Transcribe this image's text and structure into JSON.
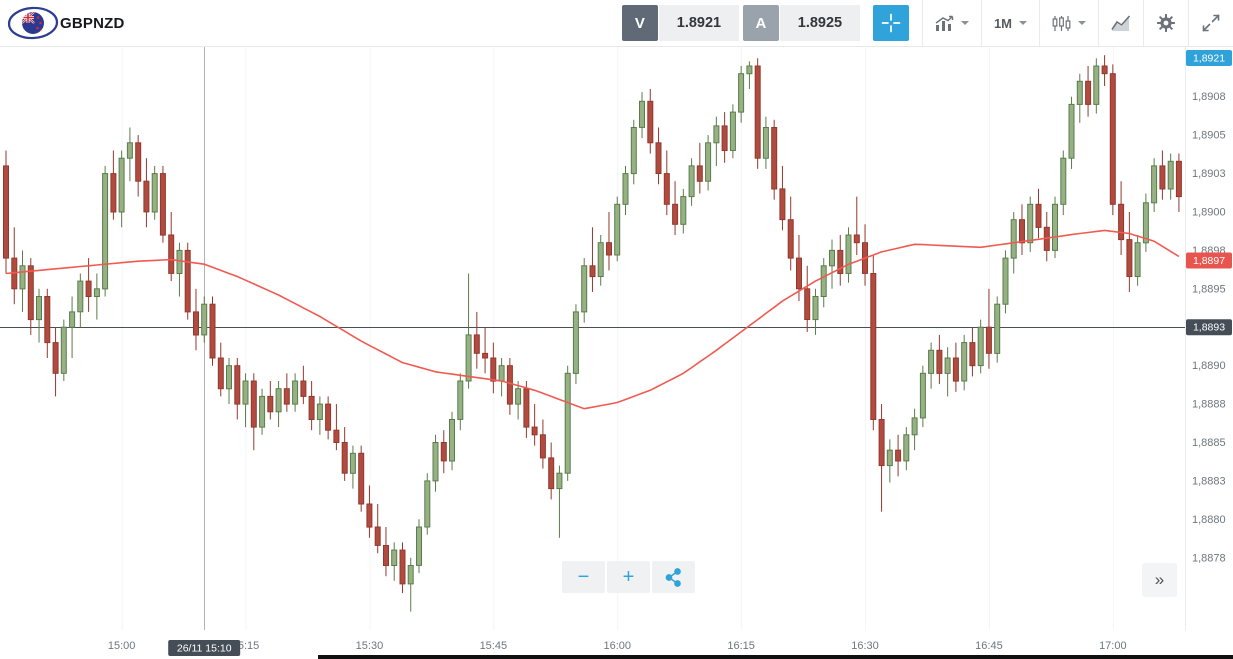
{
  "toolbar": {
    "symbol": "GBPNZD",
    "sell_label": "V",
    "sell_price": "1.8921",
    "buy_label": "A",
    "buy_price": "1.8925",
    "timeframe": "1M"
  },
  "controls": {
    "zoom_out": "−",
    "zoom_in": "+",
    "expand": "»"
  },
  "icons": {
    "crosshair": "crosshair-icon",
    "chart_type": "chart-type-icon",
    "candle_style": "candles-icon",
    "indicators": "indicators-icon",
    "settings": "gear-icon",
    "fullscreen": "fullscreen-toggle-icon",
    "share": "share-icon",
    "dropdown": "chevron-down-icon"
  },
  "chart_data": {
    "type": "candlestick",
    "title": "GBPNZD 1-minute chart",
    "symbol": "GBPNZD",
    "interval": "1m",
    "colors": {
      "up": "#96b285",
      "up_border": "#5a7c4a",
      "down": "#b24b3f",
      "down_border": "#93382e",
      "ma": "#f05a50",
      "blue_badge": "#30a2da",
      "red_badge": "#e8554e",
      "dark_badge": "#454e57",
      "axis_text": "#6f767d",
      "open_line": "#4a4f55",
      "crosshair_line": "#b0b4b8",
      "grid": "#f4f5f6"
    },
    "price_axis": {
      "ymax": 1.89108,
      "ymin": 1.88728,
      "ticks": [
        {
          "label": "1,8908",
          "price": 1.89075
        },
        {
          "label": "1,8905",
          "price": 1.8905
        },
        {
          "label": "1,8903",
          "price": 1.89025
        },
        {
          "label": "1,8900",
          "price": 1.89
        },
        {
          "label": "1,8898",
          "price": 1.88975
        },
        {
          "label": "1,8895",
          "price": 1.8895
        },
        {
          "label": "1,8893",
          "price": 1.88925
        },
        {
          "label": "1,8890",
          "price": 1.889
        },
        {
          "label": "1,8888",
          "price": 1.88875
        },
        {
          "label": "1,8885",
          "price": 1.8885
        },
        {
          "label": "1,8883",
          "price": 1.88825
        },
        {
          "label": "1,8880",
          "price": 1.888
        },
        {
          "label": "1,8878",
          "price": 1.88775
        }
      ]
    },
    "time_axis": {
      "ticks": [
        {
          "label": "15:00",
          "index": 14
        },
        {
          "label": "15:15",
          "index": 29
        },
        {
          "label": "15:30",
          "index": 44
        },
        {
          "label": "15:45",
          "index": 59
        },
        {
          "label": "16:00",
          "index": 74
        },
        {
          "label": "16:15",
          "index": 89
        },
        {
          "label": "16:30",
          "index": 104
        },
        {
          "label": "16:45",
          "index": 119
        },
        {
          "label": "17:00",
          "index": 134
        }
      ]
    },
    "open_line": {
      "price": 1.88925,
      "label": "1,8893"
    },
    "last_price_badge": {
      "label": "1,8921",
      "clamped_top": true
    },
    "crosshair": {
      "index": 24,
      "label": "26/11 15:10"
    },
    "ma_line": {
      "label": "1,8897",
      "last": 1.88971,
      "color": "#f05a50",
      "points": [
        [
          0,
          1.8896
        ],
        [
          8,
          1.88964
        ],
        [
          16,
          1.88968
        ],
        [
          20,
          1.88969
        ],
        [
          24,
          1.88966
        ],
        [
          28,
          1.88958
        ],
        [
          33,
          1.88946
        ],
        [
          38,
          1.88932
        ],
        [
          43,
          1.88916
        ],
        [
          48,
          1.88902
        ],
        [
          52,
          1.88896
        ],
        [
          56,
          1.88893
        ],
        [
          60,
          1.8889
        ],
        [
          64,
          1.88884
        ],
        [
          67,
          1.88878
        ],
        [
          70,
          1.88872
        ],
        [
          74,
          1.88876
        ],
        [
          78,
          1.88884
        ],
        [
          82,
          1.88895
        ],
        [
          86,
          1.8891
        ],
        [
          90,
          1.88926
        ],
        [
          94,
          1.88942
        ],
        [
          98,
          1.88955
        ],
        [
          102,
          1.88966
        ],
        [
          106,
          1.88974
        ],
        [
          110,
          1.88979
        ],
        [
          114,
          1.88978
        ],
        [
          118,
          1.88977
        ],
        [
          122,
          1.8898
        ],
        [
          126,
          1.88983
        ],
        [
          130,
          1.88986
        ],
        [
          133,
          1.88988
        ],
        [
          136,
          1.88986
        ],
        [
          139,
          1.88981
        ],
        [
          142,
          1.88971
        ]
      ]
    },
    "candles": [
      [
        "14:46",
        1.8903,
        1.8904,
        1.8896,
        1.8897
      ],
      [
        "14:47",
        1.8897,
        1.8899,
        1.8894,
        1.8895
      ],
      [
        "14:48",
        1.8895,
        1.88975,
        1.88935,
        1.88965
      ],
      [
        "14:49",
        1.88965,
        1.8897,
        1.8892,
        1.8893
      ],
      [
        "14:50",
        1.8893,
        1.8895,
        1.88915,
        1.88945
      ],
      [
        "14:51",
        1.88945,
        1.8895,
        1.88905,
        1.88915
      ],
      [
        "14:52",
        1.88915,
        1.88925,
        1.8888,
        1.88895
      ],
      [
        "14:53",
        1.88895,
        1.8893,
        1.8889,
        1.88925
      ],
      [
        "14:54",
        1.88925,
        1.88945,
        1.88905,
        1.88935
      ],
      [
        "14:55",
        1.88935,
        1.8896,
        1.88925,
        1.88955
      ],
      [
        "14:56",
        1.88955,
        1.8897,
        1.88935,
        1.88945
      ],
      [
        "14:57",
        1.88945,
        1.8896,
        1.8893,
        1.8895
      ],
      [
        "14:58",
        1.8895,
        1.8903,
        1.88945,
        1.89025
      ],
      [
        "14:59",
        1.89025,
        1.8904,
        1.88995,
        1.89
      ],
      [
        "15:00",
        1.89,
        1.8904,
        1.8899,
        1.89035
      ],
      [
        "15:01",
        1.89035,
        1.89055,
        1.8902,
        1.89045
      ],
      [
        "15:02",
        1.89045,
        1.8905,
        1.8901,
        1.8902
      ],
      [
        "15:03",
        1.8902,
        1.89035,
        1.8899,
        1.89
      ],
      [
        "15:04",
        1.89,
        1.8903,
        1.88995,
        1.89025
      ],
      [
        "15:05",
        1.89025,
        1.8903,
        1.8898,
        1.88985
      ],
      [
        "15:06",
        1.88985,
        1.89,
        1.88955,
        1.8896
      ],
      [
        "15:07",
        1.8896,
        1.8898,
        1.88945,
        1.88975
      ],
      [
        "15:08",
        1.88975,
        1.8898,
        1.8893,
        1.88935
      ],
      [
        "15:09",
        1.88935,
        1.8895,
        1.8891,
        1.8892
      ],
      [
        "15:10",
        1.8892,
        1.88945,
        1.88915,
        1.8894
      ],
      [
        "15:11",
        1.8894,
        1.88945,
        1.889,
        1.88905
      ],
      [
        "15:12",
        1.88905,
        1.88915,
        1.8888,
        1.88885
      ],
      [
        "15:13",
        1.88885,
        1.88905,
        1.88875,
        1.889
      ],
      [
        "15:14",
        1.889,
        1.88905,
        1.88865,
        1.88875
      ],
      [
        "15:15",
        1.88875,
        1.88895,
        1.8886,
        1.8889
      ],
      [
        "15:16",
        1.8889,
        1.88895,
        1.88845,
        1.8886
      ],
      [
        "15:17",
        1.8886,
        1.88885,
        1.88855,
        1.8888
      ],
      [
        "15:18",
        1.8888,
        1.8889,
        1.88865,
        1.8887
      ],
      [
        "15:19",
        1.8887,
        1.8889,
        1.8886,
        1.88885
      ],
      [
        "15:20",
        1.88885,
        1.88895,
        1.8887,
        1.88875
      ],
      [
        "15:21",
        1.88875,
        1.88895,
        1.8887,
        1.8889
      ],
      [
        "15:22",
        1.8889,
        1.889,
        1.88875,
        1.8888
      ],
      [
        "15:23",
        1.8888,
        1.8889,
        1.88858,
        1.88865
      ],
      [
        "15:24",
        1.88865,
        1.8888,
        1.88855,
        1.88875
      ],
      [
        "15:25",
        1.88875,
        1.8888,
        1.88852,
        1.88858
      ],
      [
        "15:26",
        1.88858,
        1.88875,
        1.88845,
        1.8885
      ],
      [
        "15:27",
        1.8885,
        1.8886,
        1.88825,
        1.8883
      ],
      [
        "15:28",
        1.8883,
        1.88848,
        1.8882,
        1.88843
      ],
      [
        "15:29",
        1.88843,
        1.88848,
        1.88805,
        1.8881
      ],
      [
        "15:30",
        1.8881,
        1.88822,
        1.88788,
        1.88795
      ],
      [
        "15:31",
        1.88795,
        1.8881,
        1.88778,
        1.88783
      ],
      [
        "15:32",
        1.88783,
        1.88795,
        1.88763,
        1.8877
      ],
      [
        "15:33",
        1.8877,
        1.88785,
        1.8876,
        1.8878
      ],
      [
        "15:34",
        1.8878,
        1.88785,
        1.88752,
        1.88758
      ],
      [
        "15:35",
        1.88758,
        1.88775,
        1.8874,
        1.8877
      ],
      [
        "15:36",
        1.8877,
        1.888,
        1.88765,
        1.88795
      ],
      [
        "15:37",
        1.88795,
        1.8883,
        1.8879,
        1.88825
      ],
      [
        "15:38",
        1.88825,
        1.88855,
        1.88818,
        1.8885
      ],
      [
        "15:39",
        1.8885,
        1.88858,
        1.8883,
        1.88838
      ],
      [
        "15:40",
        1.88838,
        1.8887,
        1.88832,
        1.88865
      ],
      [
        "15:41",
        1.88865,
        1.88895,
        1.88858,
        1.8889
      ],
      [
        "15:42",
        1.8889,
        1.8896,
        1.88885,
        1.8892
      ],
      [
        "15:43",
        1.8892,
        1.88935,
        1.88898,
        1.88908
      ],
      [
        "15:44",
        1.88908,
        1.88925,
        1.88895,
        1.88905
      ],
      [
        "15:45",
        1.88905,
        1.88915,
        1.88882,
        1.8889
      ],
      [
        "15:46",
        1.8889,
        1.88905,
        1.8888,
        1.889
      ],
      [
        "15:47",
        1.889,
        1.88905,
        1.88868,
        1.88875
      ],
      [
        "15:48",
        1.88875,
        1.8889,
        1.88865,
        1.88885
      ],
      [
        "15:49",
        1.88885,
        1.8889,
        1.88853,
        1.8886
      ],
      [
        "15:50",
        1.8886,
        1.88875,
        1.88848,
        1.88855
      ],
      [
        "15:51",
        1.88855,
        1.88865,
        1.88833,
        1.8884
      ],
      [
        "15:52",
        1.8884,
        1.8885,
        1.88813,
        1.8882
      ],
      [
        "15:53",
        1.8882,
        1.88835,
        1.88788,
        1.8883
      ],
      [
        "15:54",
        1.8883,
        1.889,
        1.88825,
        1.88895
      ],
      [
        "15:55",
        1.88895,
        1.8894,
        1.88888,
        1.88935
      ],
      [
        "15:56",
        1.88935,
        1.8897,
        1.88928,
        1.88965
      ],
      [
        "15:57",
        1.88965,
        1.8899,
        1.88948,
        1.88958
      ],
      [
        "15:58",
        1.88958,
        1.88985,
        1.88952,
        1.8898
      ],
      [
        "15:59",
        1.8898,
        1.89,
        1.88962,
        1.88972
      ],
      [
        "16:00",
        1.88972,
        1.8901,
        1.88968,
        1.89005
      ],
      [
        "16:01",
        1.89005,
        1.8903,
        1.88998,
        1.89025
      ],
      [
        "16:02",
        1.89025,
        1.8906,
        1.89018,
        1.89055
      ],
      [
        "16:03",
        1.89055,
        1.89078,
        1.89048,
        1.89072
      ],
      [
        "16:04",
        1.89072,
        1.8908,
        1.89038,
        1.89045
      ],
      [
        "16:05",
        1.89045,
        1.89055,
        1.89018,
        1.89025
      ],
      [
        "16:06",
        1.89025,
        1.8904,
        1.88998,
        1.89005
      ],
      [
        "16:07",
        1.89005,
        1.8902,
        1.88985,
        1.88992
      ],
      [
        "16:08",
        1.88992,
        1.89015,
        1.88986,
        1.8901
      ],
      [
        "16:09",
        1.8901,
        1.89035,
        1.89004,
        1.8903
      ],
      [
        "16:10",
        1.8903,
        1.89045,
        1.89012,
        1.8902
      ],
      [
        "16:11",
        1.8902,
        1.8905,
        1.89014,
        1.89045
      ],
      [
        "16:12",
        1.89045,
        1.89062,
        1.8903,
        1.89056
      ],
      [
        "16:13",
        1.89056,
        1.89065,
        1.89032,
        1.8904
      ],
      [
        "16:14",
        1.8904,
        1.8907,
        1.89035,
        1.89065
      ],
      [
        "16:15",
        1.89065,
        1.89095,
        1.89058,
        1.8909
      ],
      [
        "16:16",
        1.8909,
        1.89098,
        1.8908,
        1.89095
      ],
      [
        "16:17",
        1.89095,
        1.891,
        1.89028,
        1.89035
      ],
      [
        "16:18",
        1.89035,
        1.89062,
        1.89028,
        1.89055
      ],
      [
        "16:19",
        1.89055,
        1.8906,
        1.89008,
        1.89015
      ],
      [
        "16:20",
        1.89015,
        1.8903,
        1.88988,
        1.88995
      ],
      [
        "16:21",
        1.88995,
        1.8901,
        1.88962,
        1.8897
      ],
      [
        "16:22",
        1.8897,
        1.88985,
        1.88942,
        1.8895
      ],
      [
        "16:23",
        1.8895,
        1.88965,
        1.88922,
        1.8893
      ],
      [
        "16:24",
        1.8893,
        1.8895,
        1.8892,
        1.88945
      ],
      [
        "16:25",
        1.88945,
        1.8897,
        1.88938,
        1.88965
      ],
      [
        "16:26",
        1.88965,
        1.88982,
        1.8895,
        1.88975
      ],
      [
        "16:27",
        1.88975,
        1.88985,
        1.88952,
        1.8896
      ],
      [
        "16:28",
        1.8896,
        1.8899,
        1.88954,
        1.88985
      ],
      [
        "16:29",
        1.88985,
        1.8901,
        1.88972,
        1.8898
      ],
      [
        "16:30",
        1.8898,
        1.88992,
        1.88952,
        1.8896
      ],
      [
        "16:31",
        1.8896,
        1.88972,
        1.88858,
        1.88865
      ],
      [
        "16:32",
        1.88865,
        1.88875,
        1.88805,
        1.88835
      ],
      [
        "16:33",
        1.88835,
        1.88852,
        1.88824,
        1.88845
      ],
      [
        "16:34",
        1.88845,
        1.88855,
        1.88828,
        1.88838
      ],
      [
        "16:35",
        1.88838,
        1.8886,
        1.88832,
        1.88855
      ],
      [
        "16:36",
        1.88855,
        1.88872,
        1.88845,
        1.88866
      ],
      [
        "16:37",
        1.88866,
        1.889,
        1.8886,
        1.88895
      ],
      [
        "16:38",
        1.88895,
        1.88915,
        1.88885,
        1.8891
      ],
      [
        "16:39",
        1.8891,
        1.8892,
        1.88888,
        1.88895
      ],
      [
        "16:40",
        1.88895,
        1.88912,
        1.8888,
        1.88905
      ],
      [
        "16:41",
        1.88905,
        1.88915,
        1.88883,
        1.8889
      ],
      [
        "16:42",
        1.8889,
        1.8892,
        1.88884,
        1.88915
      ],
      [
        "16:43",
        1.88915,
        1.88925,
        1.88893,
        1.889
      ],
      [
        "16:44",
        1.889,
        1.8893,
        1.88895,
        1.88925
      ],
      [
        "16:45",
        1.88925,
        1.8895,
        1.88898,
        1.88908
      ],
      [
        "16:46",
        1.88908,
        1.88945,
        1.88902,
        1.8894
      ],
      [
        "16:47",
        1.8894,
        1.88975,
        1.88934,
        1.8897
      ],
      [
        "16:48",
        1.8897,
        1.89,
        1.8896,
        1.88995
      ],
      [
        "16:49",
        1.88995,
        1.89005,
        1.88972,
        1.8898
      ],
      [
        "16:50",
        1.8898,
        1.8901,
        1.88974,
        1.89005
      ],
      [
        "16:51",
        1.89005,
        1.89015,
        1.88983,
        1.8899
      ],
      [
        "16:52",
        1.8899,
        1.89,
        1.88968,
        1.88975
      ],
      [
        "16:53",
        1.88975,
        1.8901,
        1.8897,
        1.89005
      ],
      [
        "16:54",
        1.89005,
        1.8904,
        1.88998,
        1.89035
      ],
      [
        "16:55",
        1.89035,
        1.89075,
        1.89028,
        1.8907
      ],
      [
        "16:56",
        1.8907,
        1.8909,
        1.89058,
        1.89085
      ],
      [
        "16:57",
        1.89085,
        1.89095,
        1.89062,
        1.8907
      ],
      [
        "16:58",
        1.8907,
        1.891,
        1.89064,
        1.89095
      ],
      [
        "16:59",
        1.89095,
        1.89102,
        1.89082,
        1.8909
      ],
      [
        "17:00",
        1.8909,
        1.89096,
        1.88998,
        1.89005
      ],
      [
        "17:01",
        1.89005,
        1.8902,
        1.88972,
        1.88982
      ],
      [
        "17:02",
        1.88982,
        1.89,
        1.88948,
        1.88958
      ],
      [
        "17:03",
        1.88958,
        1.88985,
        1.88952,
        1.8898
      ],
      [
        "17:04",
        1.8898,
        1.89012,
        1.88974,
        1.89006
      ],
      [
        "17:05",
        1.89006,
        1.89035,
        1.89,
        1.8903
      ],
      [
        "17:06",
        1.8903,
        1.8904,
        1.89008,
        1.89015
      ],
      [
        "17:07",
        1.89015,
        1.89038,
        1.89008,
        1.89033
      ],
      [
        "17:08",
        1.89033,
        1.89038,
        1.89,
        1.8901
      ]
    ]
  }
}
